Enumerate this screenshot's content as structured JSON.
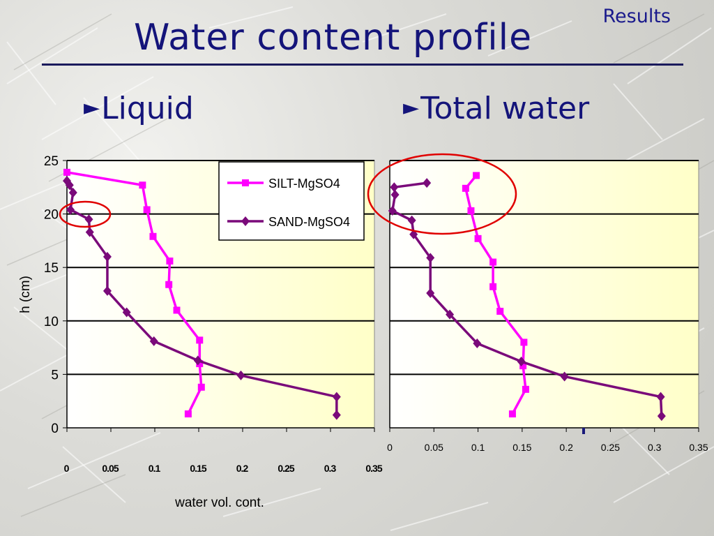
{
  "header": {
    "section_label": "Results",
    "title": "Water content profile"
  },
  "subtitles": {
    "left": "Liquid",
    "right": "Total water",
    "bullet_icon": "triangle-right-icon"
  },
  "colors": {
    "title": "#14147a",
    "silt": "#ff00ff",
    "sand": "#7a0a7a",
    "plot_bg": "#ffffc8",
    "highlight": "#e00000"
  },
  "chart_data": [
    {
      "type": "line",
      "panel": "Liquid",
      "xlabel": "water vol. cont.",
      "ylabel": "h (cm)",
      "xlim": [
        0,
        0.35
      ],
      "ylim": [
        0,
        25
      ],
      "x_ticks": [
        "0",
        "0.05",
        "0.1",
        "0.15",
        "0.2",
        "0.25",
        "0.3",
        "0.35"
      ],
      "y_ticks": [
        "0",
        "5",
        "10",
        "15",
        "20",
        "25"
      ],
      "grid": "horizontal",
      "legend_position": "top-right",
      "series": [
        {
          "name": "SILT-MgSO4",
          "color": "#ff00ff",
          "marker": "square",
          "points": [
            [
              0.138,
              1.3
            ],
            [
              0.153,
              3.8
            ],
            [
              0.151,
              6.0
            ],
            [
              0.151,
              8.2
            ],
            [
              0.125,
              11.0
            ],
            [
              0.116,
              13.4
            ],
            [
              0.117,
              15.6
            ],
            [
              0.098,
              17.9
            ],
            [
              0.091,
              20.4
            ],
            [
              0.086,
              22.7
            ],
            [
              0.0,
              23.9
            ]
          ]
        },
        {
          "name": "SAND-MgSO4",
          "color": "#7a0a7a",
          "marker": "diamond",
          "points": [
            [
              0.307,
              1.2
            ],
            [
              0.307,
              2.9
            ],
            [
              0.198,
              4.9
            ],
            [
              0.149,
              6.3
            ],
            [
              0.099,
              8.1
            ],
            [
              0.068,
              10.8
            ],
            [
              0.046,
              12.8
            ],
            [
              0.046,
              16.0
            ],
            [
              0.026,
              18.3
            ],
            [
              0.025,
              19.5
            ],
            [
              0.004,
              20.4
            ],
            [
              0.007,
              22.0
            ],
            [
              0.003,
              22.7
            ],
            [
              0.0,
              23.1
            ]
          ]
        }
      ],
      "annotations": [
        "red ellipse around points near h = 20"
      ]
    },
    {
      "type": "line",
      "panel": "Total water",
      "xlim": [
        0,
        0.35
      ],
      "ylim": [
        0,
        25
      ],
      "x_ticks": [
        "0",
        "0.05",
        "0.1",
        "0.15",
        "0.2",
        "0.25",
        "0.3",
        "0.35"
      ],
      "grid": "horizontal",
      "series": [
        {
          "name": "SILT-MgSO4",
          "color": "#ff00ff",
          "marker": "square",
          "points": [
            [
              0.139,
              1.3
            ],
            [
              0.154,
              3.6
            ],
            [
              0.151,
              5.8
            ],
            [
              0.152,
              8.0
            ],
            [
              0.125,
              10.9
            ],
            [
              0.117,
              13.2
            ],
            [
              0.117,
              15.5
            ],
            [
              0.1,
              17.7
            ],
            [
              0.092,
              20.3
            ],
            [
              0.086,
              22.4
            ],
            [
              0.098,
              23.6
            ]
          ]
        },
        {
          "name": "SAND-MgSO4",
          "color": "#7a0a7a",
          "marker": "diamond",
          "points": [
            [
              0.308,
              1.1
            ],
            [
              0.307,
              2.9
            ],
            [
              0.198,
              4.8
            ],
            [
              0.149,
              6.2
            ],
            [
              0.099,
              7.9
            ],
            [
              0.068,
              10.6
            ],
            [
              0.046,
              12.6
            ],
            [
              0.046,
              15.9
            ],
            [
              0.027,
              18.1
            ],
            [
              0.025,
              19.4
            ],
            [
              0.003,
              20.3
            ],
            [
              0.006,
              21.8
            ],
            [
              0.005,
              22.5
            ],
            [
              0.042,
              22.9
            ]
          ]
        }
      ],
      "annotations": [
        "red ellipse around top points"
      ]
    }
  ]
}
